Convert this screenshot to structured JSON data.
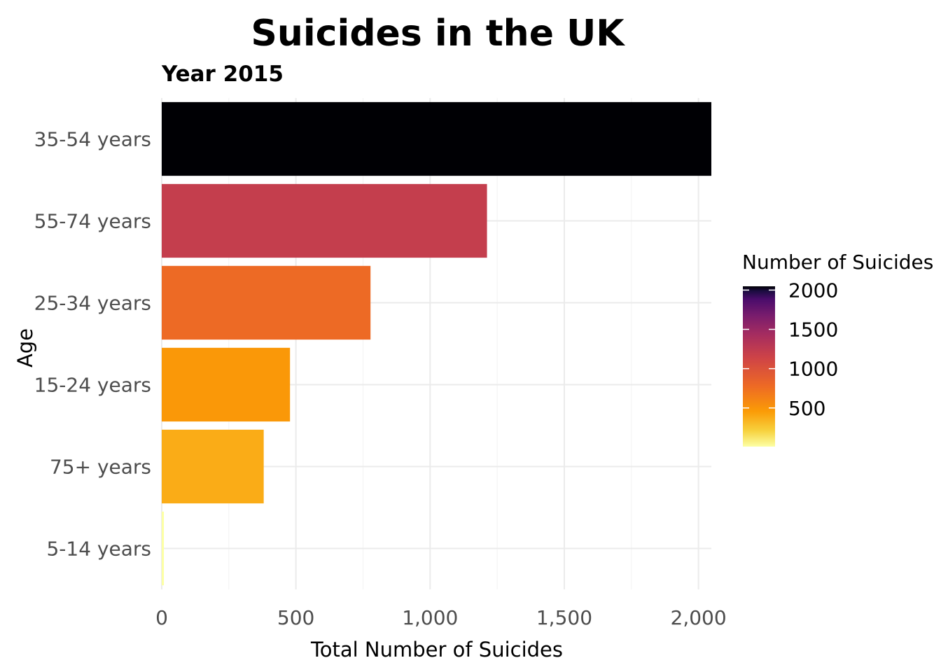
{
  "chart_data": {
    "type": "bar",
    "orientation": "horizontal",
    "title": "Suicides in the UK",
    "subtitle": "Year 2015",
    "xlabel": "Total Number of Suicides",
    "ylabel": "Age",
    "categories": [
      "35-54 years",
      "55-74 years",
      "25-34 years",
      "15-24 years",
      "75+ years",
      "5-14 years"
    ],
    "values": [
      2048,
      1212,
      778,
      478,
      380,
      8
    ],
    "xlim": [
      0,
      2048
    ],
    "x_ticks": [
      0,
      500,
      1000,
      1500,
      2000
    ],
    "x_tick_labels": [
      "0",
      "500",
      "1,000",
      "1,500",
      "2,000"
    ],
    "grid": true,
    "legend": {
      "title": "Number of Suicides",
      "placement": "right",
      "type": "colorbar",
      "palette": "inferno",
      "range": [
        8,
        2048
      ],
      "ticks": [
        500,
        1000,
        1500,
        2000
      ],
      "tick_labels": [
        "500",
        "1000",
        "1500",
        "2000"
      ]
    }
  }
}
